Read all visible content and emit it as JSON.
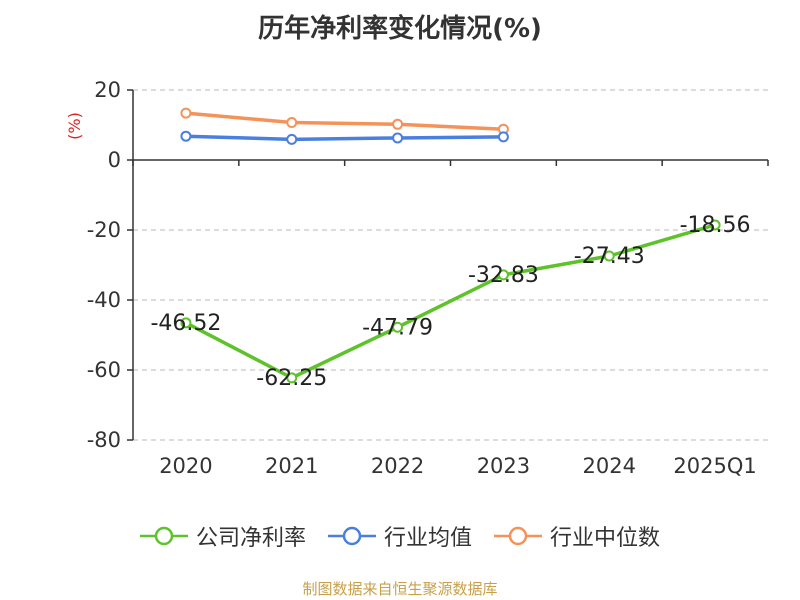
{
  "chart_data": {
    "type": "line",
    "title": "历年净利率变化情况(%)",
    "ylabel": "(%)",
    "categories": [
      "2020",
      "2021",
      "2022",
      "2023",
      "2024",
      "2025Q1"
    ],
    "ylim": [
      -80,
      20
    ],
    "yticks": [
      20,
      0,
      -20,
      -40,
      -60,
      -80
    ],
    "grid": true,
    "legend_position": "bottom",
    "series": [
      {
        "name": "公司净利率",
        "color": "#5ec22a",
        "values": [
          -46.52,
          -62.25,
          -47.79,
          -32.83,
          -27.43,
          -18.56
        ],
        "labels": [
          "-46.52",
          "-62.25",
          "-47.79",
          "-32.83",
          "-27.43",
          "-18.56"
        ]
      },
      {
        "name": "行业均值",
        "color": "#4a7fe0",
        "values": [
          6.8,
          5.9,
          6.3,
          6.6,
          null,
          null
        ]
      },
      {
        "name": "行业中位数",
        "color": "#f4925a",
        "values": [
          13.4,
          10.7,
          10.2,
          8.8,
          null,
          null
        ]
      }
    ]
  },
  "footer": {
    "source": "制图数据来自恒生聚源数据库"
  }
}
